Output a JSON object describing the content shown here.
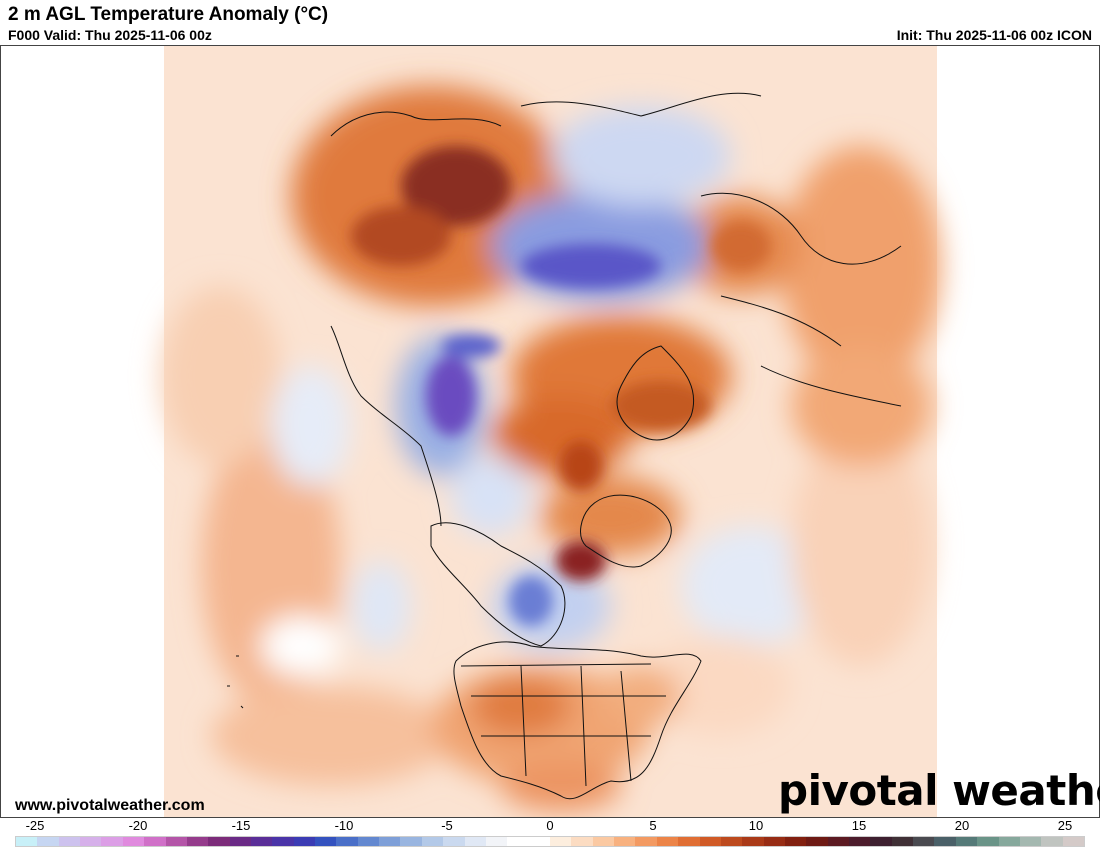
{
  "header": {
    "title": "2 m AGL Temperature Anomaly (°C)",
    "valid": "F000 Valid: Thu 2025-11-06 00z",
    "init": "Init: Thu 2025-11-06 00z ICON"
  },
  "footer": {
    "url": "www.pivotalweather.com",
    "brand": "pivotal weather"
  },
  "legend": {
    "tick_labels": [
      "-25",
      "-20",
      "-15",
      "-10",
      "-5",
      "0",
      "5",
      "10",
      "15",
      "20",
      "25"
    ],
    "min": -25,
    "max": 25,
    "colors": [
      "#c8f0f8",
      "#c6d6f2",
      "#cdc2ee",
      "#d6b0ea",
      "#dc9ee6",
      "#e08ade",
      "#d070c8",
      "#b455a8",
      "#953c8c",
      "#7c2c7a",
      "#6a2a86",
      "#5a2e98",
      "#4a34a8",
      "#3b3cb4",
      "#3452bf",
      "#4a6fc8",
      "#6388d0",
      "#7e9fd8",
      "#99b5e0",
      "#b3c9e8",
      "#cad9ef",
      "#e0e8f5",
      "#f2f4f8",
      "#ffffff",
      "#ffffff",
      "#fdeede",
      "#fcdcc2",
      "#fbc9a2",
      "#f8b17f",
      "#f39a62",
      "#ec8448",
      "#e06e34",
      "#d05a26",
      "#bd4a1e",
      "#aa3a18",
      "#972c14",
      "#822010",
      "#6e1a14",
      "#5c1a22",
      "#4c1c2c",
      "#3e2030",
      "#403036",
      "#4a4a50",
      "#4a6068",
      "#557a78",
      "#6a9488",
      "#86a89c",
      "#a4b8b0",
      "#c0c4c0",
      "#d4cac8"
    ]
  },
  "map": {
    "projection_note": "Polar stereographic, North America / Arctic",
    "palette": {
      "warm_light": "#fbdcc4",
      "warm_mid": "#f2a070",
      "warm_strong": "#d0621e",
      "warm_deep": "#8c2a1c",
      "cool_light": "#dde6f6",
      "cool_mid": "#98b0e0",
      "cool_strong": "#5a5ec8",
      "cool_deep": "#6a30a0",
      "neutral": "#ffffff"
    }
  }
}
